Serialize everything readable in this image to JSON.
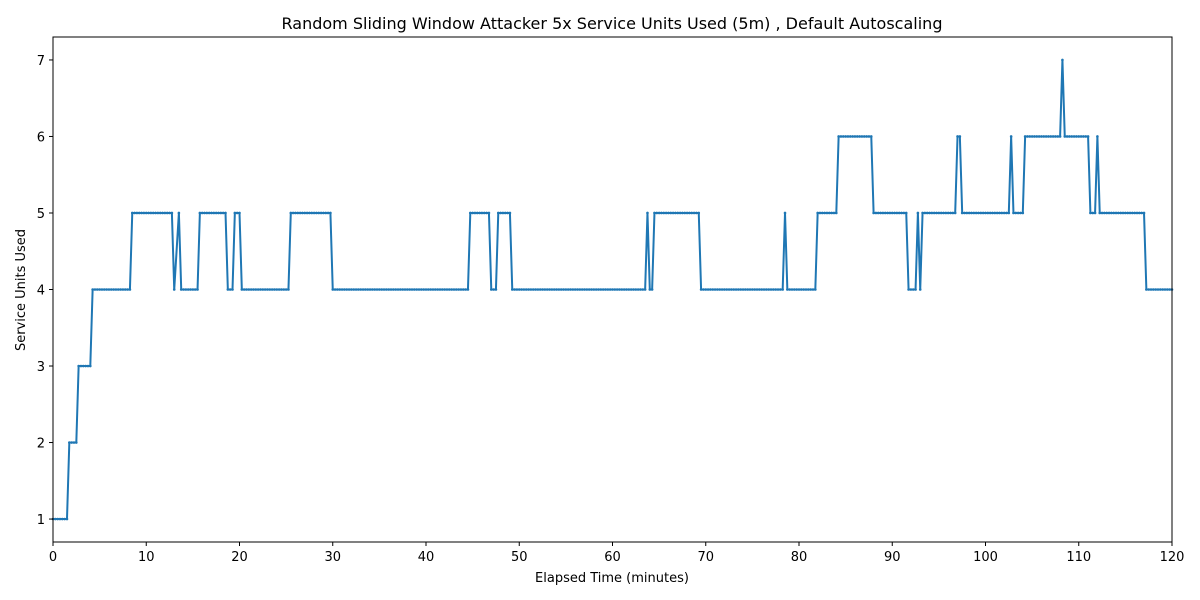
{
  "chart_data": {
    "type": "line",
    "title": "Random Sliding Window Attacker 5x Service Units Used (5m) , Default Autoscaling",
    "xlabel": "Elapsed Time (minutes)",
    "ylabel": "Service Units Used",
    "xlim": [
      0,
      120
    ],
    "ylim": [
      0.7,
      7.3
    ],
    "x_ticks": [
      0,
      10,
      20,
      30,
      40,
      50,
      60,
      70,
      80,
      90,
      100,
      110,
      120
    ],
    "y_ticks": [
      1,
      2,
      3,
      4,
      5,
      6,
      7
    ],
    "grid": false,
    "line_color": "#1f77b4",
    "marker": "point",
    "sample_interval_minutes": 0.25,
    "series": [
      {
        "segments": [
          [
            0,
            1
          ],
          [
            1.5,
            1
          ],
          [
            1.75,
            2
          ],
          [
            2.5,
            2
          ],
          [
            2.75,
            3
          ],
          [
            4.0,
            3
          ],
          [
            4.25,
            4
          ],
          [
            8.25,
            4
          ],
          [
            8.5,
            5
          ],
          [
            12.75,
            5
          ],
          [
            13.0,
            4
          ],
          [
            13.5,
            5
          ],
          [
            13.75,
            4
          ],
          [
            15.5,
            4
          ],
          [
            15.75,
            5
          ],
          [
            18.5,
            5
          ],
          [
            18.75,
            4
          ],
          [
            19.25,
            4
          ],
          [
            19.5,
            5
          ],
          [
            20.0,
            5
          ],
          [
            20.25,
            4
          ],
          [
            25.25,
            4
          ],
          [
            25.5,
            5
          ],
          [
            29.75,
            5
          ],
          [
            30.0,
            4
          ],
          [
            44.5,
            4
          ],
          [
            44.75,
            5
          ],
          [
            46.75,
            5
          ],
          [
            47.0,
            4
          ],
          [
            47.5,
            4
          ],
          [
            47.75,
            5
          ],
          [
            49.0,
            5
          ],
          [
            49.25,
            4
          ],
          [
            63.5,
            4
          ],
          [
            63.75,
            5
          ],
          [
            64.0,
            4
          ],
          [
            64.25,
            4
          ],
          [
            64.5,
            5
          ],
          [
            69.25,
            5
          ],
          [
            69.5,
            4
          ],
          [
            78.25,
            4
          ],
          [
            78.5,
            5
          ],
          [
            78.75,
            4
          ],
          [
            81.75,
            4
          ],
          [
            82.0,
            5
          ],
          [
            84.0,
            5
          ],
          [
            84.25,
            6
          ],
          [
            87.75,
            6
          ],
          [
            88.0,
            5
          ],
          [
            91.5,
            5
          ],
          [
            91.75,
            4
          ],
          [
            92.5,
            4
          ],
          [
            92.75,
            5
          ],
          [
            93.0,
            4
          ],
          [
            93.25,
            5
          ],
          [
            96.75,
            5
          ],
          [
            97.0,
            6
          ],
          [
            97.25,
            6
          ],
          [
            97.5,
            5
          ],
          [
            102.5,
            5
          ],
          [
            102.75,
            6
          ],
          [
            103.0,
            5
          ],
          [
            104.0,
            5
          ],
          [
            104.25,
            6
          ],
          [
            108.0,
            6
          ],
          [
            108.25,
            7
          ],
          [
            108.5,
            6
          ],
          [
            111.0,
            6
          ],
          [
            111.25,
            5
          ],
          [
            111.75,
            5
          ],
          [
            112.0,
            6
          ],
          [
            112.25,
            5
          ],
          [
            117.0,
            5
          ],
          [
            117.25,
            4
          ],
          [
            120,
            4
          ]
        ]
      }
    ]
  }
}
